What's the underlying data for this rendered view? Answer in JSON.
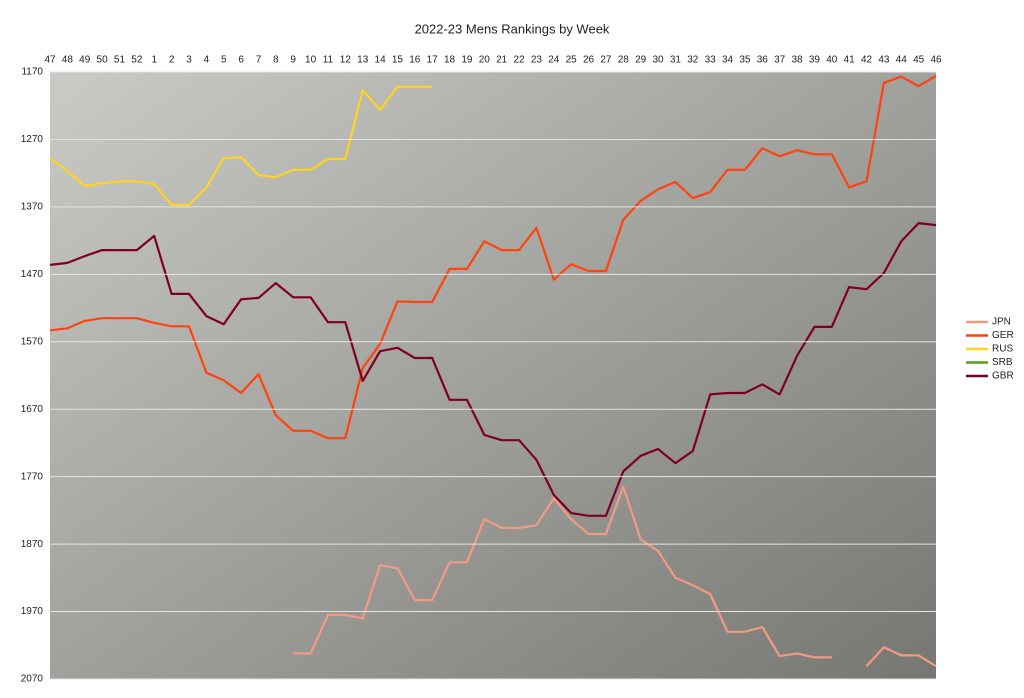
{
  "chart_data": {
    "type": "line",
    "title": "2022-23 Mens Rankings by Week",
    "categories": [
      "47",
      "48",
      "49",
      "50",
      "51",
      "52",
      "1",
      "2",
      "3",
      "4",
      "5",
      "6",
      "7",
      "8",
      "9",
      "10",
      "11",
      "12",
      "13",
      "14",
      "15",
      "16",
      "17",
      "18",
      "19",
      "20",
      "21",
      "22",
      "23",
      "24",
      "25",
      "26",
      "27",
      "28",
      "29",
      "30",
      "31",
      "32",
      "33",
      "34",
      "35",
      "36",
      "37",
      "38",
      "39",
      "40",
      "41",
      "42",
      "43",
      "44",
      "45",
      "46"
    ],
    "ylim": [
      1170,
      2070
    ],
    "y_inverted": true,
    "yticks": [
      1170,
      1270,
      1370,
      1470,
      1570,
      1670,
      1770,
      1870,
      1970,
      2070
    ],
    "grid": true,
    "legend": "right",
    "series": [
      {
        "name": "JPN",
        "color": "#f39b82",
        "values": [
          null,
          null,
          null,
          null,
          null,
          null,
          null,
          null,
          null,
          null,
          null,
          null,
          null,
          null,
          2032,
          2032,
          1975,
          1975,
          1980,
          1901,
          1906,
          1953,
          1953,
          1897,
          1897,
          1833,
          1846,
          1846,
          1842,
          1802,
          1833,
          1855,
          1855,
          1785,
          1863,
          1880,
          1920,
          1931,
          1944,
          2000,
          2000,
          1993,
          2036,
          2032,
          2038,
          2038,
          null,
          2051,
          2023,
          2035,
          2035,
          2051
        ]
      },
      {
        "name": "GER",
        "color": "#ff420e",
        "values": [
          1553,
          1550,
          1539,
          1535,
          1535,
          1535,
          1542,
          1547,
          1547,
          1616,
          1627,
          1646,
          1618,
          1679,
          1702,
          1702,
          1713,
          1713,
          1609,
          1573,
          1510,
          1511,
          1511,
          1462,
          1462,
          1421,
          1434,
          1434,
          1401,
          1478,
          1455,
          1465,
          1465,
          1389,
          1361,
          1344,
          1333,
          1357,
          1348,
          1315,
          1315,
          1283,
          1295,
          1286,
          1292,
          1292,
          1341,
          1332,
          1186,
          1177,
          1191,
          1176
        ]
      },
      {
        "name": "RUS",
        "color": "#ffd320",
        "values": [
          1298,
          1317,
          1339,
          1335,
          1332,
          1332,
          1336,
          1367,
          1367,
          1341,
          1298,
          1296,
          1323,
          1326,
          1315,
          1315,
          1299,
          1299,
          1197,
          1226,
          1192,
          1192,
          1192,
          null,
          null,
          null,
          null,
          null,
          null,
          null,
          null,
          null,
          null,
          null,
          null,
          null,
          null,
          null,
          null,
          null,
          null,
          null,
          null,
          null,
          null,
          null,
          null,
          null,
          null,
          null,
          null,
          null
        ]
      },
      {
        "name": "SRB",
        "color": "#579d1c",
        "values": [
          null,
          null,
          null,
          null,
          null,
          null,
          null,
          null,
          null,
          null,
          null,
          null,
          null,
          null,
          null,
          null,
          null,
          null,
          null,
          null,
          null,
          null,
          null,
          null,
          null,
          null,
          null,
          null,
          null,
          null,
          null,
          null,
          null,
          null,
          null,
          null,
          null,
          null,
          null,
          null,
          null,
          null,
          null,
          null,
          null,
          null,
          null,
          null,
          null,
          null,
          null,
          null
        ]
      },
      {
        "name": "GBR",
        "color": "#7e0021",
        "values": [
          1456,
          1453,
          1443,
          1434,
          1434,
          1434,
          1413,
          1499,
          1499,
          1532,
          1544,
          1507,
          1505,
          1483,
          1504,
          1504,
          1541,
          1541,
          1628,
          1584,
          1579,
          1594,
          1594,
          1656,
          1656,
          1708,
          1716,
          1716,
          1745,
          1797,
          1824,
          1828,
          1828,
          1762,
          1739,
          1729,
          1750,
          1732,
          1648,
          1646,
          1646,
          1633,
          1648,
          1591,
          1548,
          1548,
          1489,
          1492,
          1468,
          1421,
          1394,
          1397
        ]
      }
    ]
  }
}
